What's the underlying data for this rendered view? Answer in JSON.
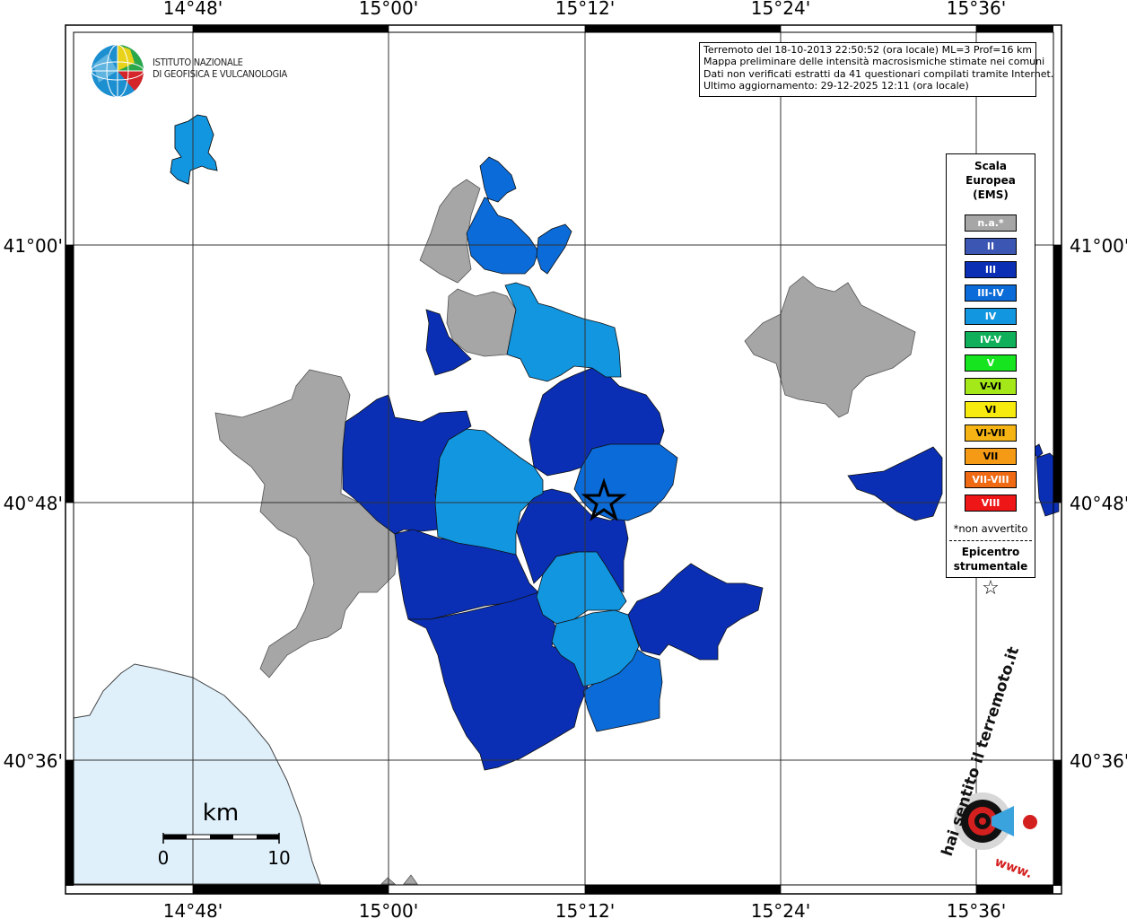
{
  "map": {
    "longitude_ticks": [
      "14°48'",
      "15°00'",
      "15°12'",
      "15°24'",
      "15°36'"
    ],
    "latitude_ticks": [
      "41°00'",
      "40°48'",
      "40°36'"
    ]
  },
  "header": {
    "logo_line1": "ISTITUTO NAZIONALE",
    "logo_line2": "DI GEOFISICA E VULCANOLOGIA"
  },
  "info": {
    "line1": "Terremoto del 18-10-2013 22:50:52 (ora locale) ML=3 Prof=16 km",
    "line2": "Mappa preliminare delle intensità macrosismiche stimate nei comuni",
    "line3": "Dati non verificati estratti da 41 questionari compilati tramite Internet.",
    "line4": "Ultimo aggiornamento: 29-12-2025 12:11 (ora locale)"
  },
  "legend": {
    "title_line1": "Scala",
    "title_line2": "Europea",
    "title_line3": "(EMS)",
    "items": [
      {
        "label": "n.a.*",
        "color": "#a6a6a6"
      },
      {
        "label": "II",
        "color": "#3c56b4"
      },
      {
        "label": "III",
        "color": "#0a2fb5"
      },
      {
        "label": "III-IV",
        "color": "#0b6bd8"
      },
      {
        "label": "IV",
        "color": "#1296e0"
      },
      {
        "label": "IV-V",
        "color": "#10b05a"
      },
      {
        "label": "V",
        "color": "#15e41e"
      },
      {
        "label": "V-VI",
        "color": "#a5e81a"
      },
      {
        "label": "VI",
        "color": "#f6ea0e"
      },
      {
        "label": "VI-VII",
        "color": "#f5b414"
      },
      {
        "label": "VII",
        "color": "#f59a14"
      },
      {
        "label": "VII-VIII",
        "color": "#f06a14"
      },
      {
        "label": "VIII",
        "color": "#ee1616"
      }
    ],
    "note": "*non avvertito",
    "epicenter_line1": "Epicentro",
    "epicenter_line2": "strumentale",
    "epicenter_symbol": "☆"
  },
  "scale_bar": {
    "unit": "km",
    "start": "0",
    "end": "10"
  },
  "watermark": {
    "text1": "hai sentito il terremoto.it",
    "text2": "www."
  },
  "colors": {
    "na": "#a6a6a6",
    "III": "#0a2fb5",
    "III_IV": "#0b6bd8",
    "IV": "#1296e0",
    "sea": "#dff0fb"
  }
}
